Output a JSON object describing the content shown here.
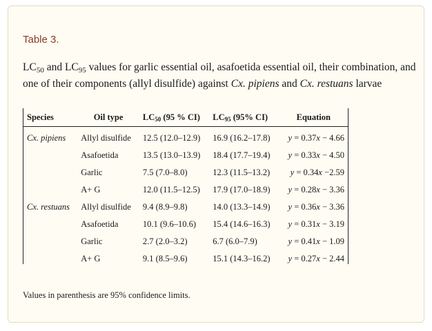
{
  "table_label": "Table 3.",
  "caption": {
    "part1": "LC",
    "sub1": "50",
    "part2": " and LC",
    "sub2": "95",
    "part3": " values for garlic essential oil, asafoetida essential oil, their combination, and one of their components (allyl disulfide) against ",
    "species1": "Cx. pipiens",
    "part4": " and ",
    "species2": "Cx. restuans",
    "part5": " larvae"
  },
  "table": {
    "headers": {
      "species": "Species",
      "oil_type": "Oil type",
      "lc50_prefix": "LC",
      "lc50_sub": "50",
      "lc50_suffix": " (95 % CI)",
      "lc95_prefix": "LC",
      "lc95_sub": "95",
      "lc95_suffix": " (95% CI)",
      "equation": "Equation"
    },
    "rows": [
      {
        "species": "Cx. pipiens",
        "oil": "Allyl disulfide",
        "lc50": "12.5 (12.0–12.9)",
        "lc95": "16.9 (16.2–17.8)",
        "eq_a": "y",
        "eq_b": " = 0.37",
        "eq_c": "x",
        "eq_d": " − 4.66"
      },
      {
        "species": "",
        "oil": "Asafoetida",
        "lc50": "13.5 (13.0–13.9)",
        "lc95": "18.4 (17.7–19.4)",
        "eq_a": "y",
        "eq_b": " = 0.33",
        "eq_c": "x",
        "eq_d": " − 4.50"
      },
      {
        "species": "",
        "oil": "Garlic",
        "lc50": "7.5 (7.0–8.0)",
        "lc95": "12.3 (11.5–13.2)",
        "eq_a": "y",
        "eq_b": " = 0.34",
        "eq_c": "x",
        "eq_d": " −2.59"
      },
      {
        "species": "",
        "oil": "A+ G",
        "lc50": "12.0 (11.5–12.5)",
        "lc95": "17.9 (17.0–18.9)",
        "eq_a": "y",
        "eq_b": " = 0.28",
        "eq_c": "x",
        "eq_d": " − 3.36"
      },
      {
        "species": "Cx. restuans",
        "oil": "Allyl disulfide",
        "lc50": "9.4 (8.9–9.8)",
        "lc95": "14.0 (13.3–14.9)",
        "eq_a": "y",
        "eq_b": " = 0.36",
        "eq_c": "x",
        "eq_d": " − 3.36"
      },
      {
        "species": "",
        "oil": "Asafoetida",
        "lc50": "10.1 (9.6–10.6)",
        "lc95": "15.4 (14.6–16.3)",
        "eq_a": "y",
        "eq_b": " = 0.31",
        "eq_c": "x",
        "eq_d": " − 3.19"
      },
      {
        "species": "",
        "oil": "Garlic",
        "lc50": "2.7 (2.0–3.2)",
        "lc95": "6.7 (6.0–7.9)",
        "eq_a": "y",
        "eq_b": " = 0.41",
        "eq_c": "x",
        "eq_d": " − 1.09"
      },
      {
        "species": "",
        "oil": "A+ G",
        "lc50": "9.1 (8.5–9.6)",
        "lc95": "15.1 (14.3–16.2)",
        "eq_a": "y",
        "eq_b": " = 0.27",
        "eq_c": "x",
        "eq_d": " − 2.44"
      }
    ]
  },
  "footnote": "Values in parenthesis are 95% confidence limits."
}
